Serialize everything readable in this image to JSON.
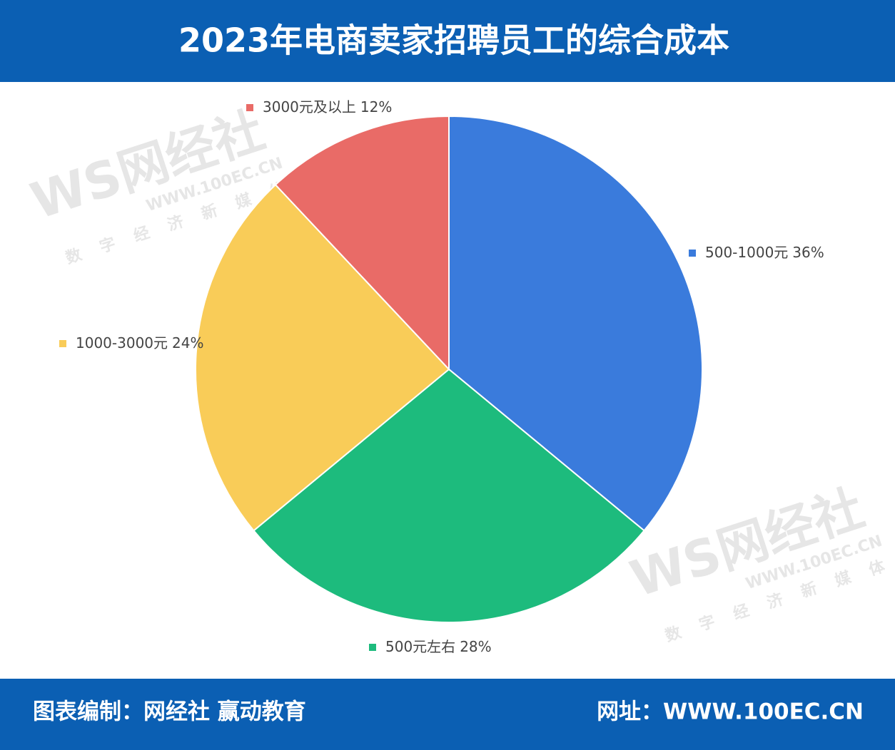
{
  "chart_data": {
    "type": "pie",
    "title": "2023年电商卖家招聘员工的综合成本",
    "categories": [
      "500-1000元",
      "500元左右",
      "1000-3000元",
      "3000元及以上"
    ],
    "values": [
      36,
      28,
      24,
      12
    ],
    "value_labels": [
      "36%",
      "28%",
      "24%",
      "12%"
    ],
    "colors": [
      "#3a7bdc",
      "#1dbb7d",
      "#f9cc58",
      "#e96b67"
    ]
  },
  "footer": {
    "credit": "图表编制：网经社 赢动教育",
    "website": "网址：WWW.100EC.CN"
  },
  "watermark": {
    "logo": "WS网经社",
    "url": "WWW.100EC.CN",
    "tagline": "数字经济新媒体"
  }
}
